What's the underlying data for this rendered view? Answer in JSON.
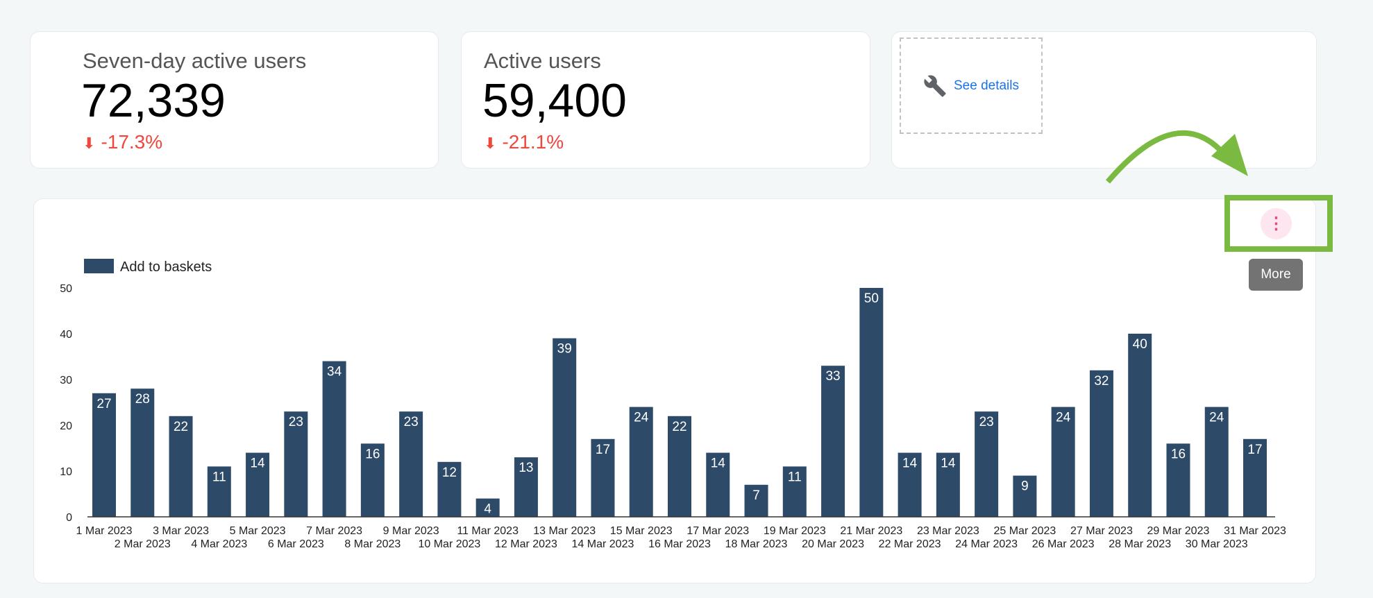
{
  "kpis": [
    {
      "title": "Seven-day active users",
      "value": "72,339",
      "delta": "-17.3%",
      "trend_icon": "arrow-down-icon"
    },
    {
      "title": "Active users",
      "value": "59,400",
      "delta": "-21.1%",
      "trend_icon": "arrow-down-icon"
    }
  ],
  "details_card": {
    "link": "See details",
    "icon": "wrench-icon"
  },
  "chart_menu": {
    "icon": "more-vert-icon",
    "tooltip": "More"
  },
  "colors": {
    "bar": "#2d4a68",
    "negative": "#f0463c",
    "link": "#1a73e8",
    "highlight": "#7aba40",
    "kebab_bg": "#fde6ef"
  },
  "chart_data": {
    "type": "bar",
    "legend": "Add to baskets",
    "legend_position": "top-left",
    "ylim": [
      0,
      50
    ],
    "yticks": [
      0,
      10,
      20,
      30,
      40,
      50
    ],
    "grid": false,
    "categories": [
      "1 Mar 2023",
      "2 Mar 2023",
      "3 Mar 2023",
      "4 Mar 2023",
      "5 Mar 2023",
      "6 Mar 2023",
      "7 Mar 2023",
      "8 Mar 2023",
      "9 Mar 2023",
      "10 Mar 2023",
      "11 Mar 2023",
      "12 Mar 2023",
      "13 Mar 2023",
      "14 Mar 2023",
      "15 Mar 2023",
      "16 Mar 2023",
      "17 Mar 2023",
      "18 Mar 2023",
      "19 Mar 2023",
      "20 Mar 2023",
      "21 Mar 2023",
      "22 Mar 2023",
      "23 Mar 2023",
      "24 Mar 2023",
      "25 Mar 2023",
      "26 Mar 2023",
      "27 Mar 2023",
      "28 Mar 2023",
      "29 Mar 2023",
      "30 Mar 2023",
      "31 Mar 2023"
    ],
    "values": [
      27,
      28,
      22,
      11,
      14,
      23,
      34,
      16,
      23,
      12,
      4,
      13,
      39,
      17,
      24,
      22,
      14,
      7,
      11,
      33,
      50,
      14,
      14,
      23,
      9,
      24,
      32,
      40,
      16,
      24,
      17
    ]
  }
}
